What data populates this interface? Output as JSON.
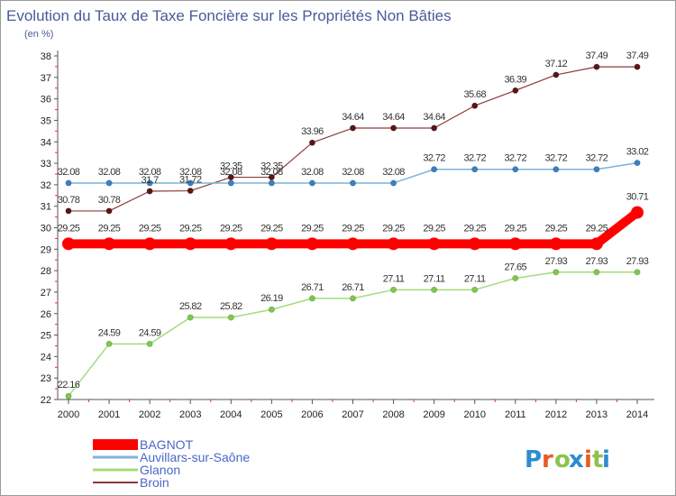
{
  "header": {
    "title": "Evolution du Taux de Taxe Foncière sur les Propriétés Non Bâties",
    "subtitle": "(en %)"
  },
  "logo": {
    "text": "Proxiti",
    "colors": [
      "#2d8ccf",
      "#e85b20",
      "#8bc34a",
      "#2d8ccf",
      "#e85b20",
      "#8bc34a",
      "#2d8ccf"
    ]
  },
  "chart_data": {
    "type": "line",
    "title": "Evolution du Taux de Taxe Foncière sur les Propriétés Non Bâties",
    "ylabel": "(en %)",
    "xlabel": "",
    "x": [
      "2000",
      "2001",
      "2002",
      "2003",
      "2004",
      "2005",
      "2006",
      "2007",
      "2008",
      "2009",
      "2010",
      "2011",
      "2012",
      "2013",
      "2014"
    ],
    "ylim": [
      22,
      38
    ],
    "yticks": [
      "22",
      "23",
      "24",
      "25",
      "26",
      "27",
      "28",
      "29",
      "30",
      "31",
      "32",
      "33",
      "34",
      "35",
      "36",
      "37",
      "38"
    ],
    "grid": false,
    "legend_position": "bottom-left",
    "series": [
      {
        "name": "BAGNOT",
        "color": "#ff0000",
        "values": [
          29.25,
          29.25,
          29.25,
          29.25,
          29.25,
          29.25,
          29.25,
          29.25,
          29.25,
          29.25,
          29.25,
          29.25,
          29.25,
          29.25,
          30.71
        ],
        "labels": [
          "29.25",
          "29.25",
          "29.25",
          "29.25",
          "29.25",
          "29.25",
          "29.25",
          "29.25",
          "29.25",
          "29.25",
          "29.25",
          "29.25",
          "29.25",
          "29.25",
          "30.71"
        ]
      },
      {
        "name": "Auvillars-sur-Saône",
        "color": "#7fb2dd",
        "values": [
          32.08,
          32.08,
          32.08,
          32.08,
          32.08,
          32.08,
          32.08,
          32.08,
          32.08,
          32.72,
          32.72,
          32.72,
          32.72,
          32.72,
          33.02
        ],
        "labels": [
          "32.08",
          "32.08",
          "32.08",
          "32.08",
          "32.08",
          "32.08",
          "32.08",
          "32.08",
          "32.08",
          "32.72",
          "32.72",
          "32.72",
          "32.72",
          "32.72",
          "33.02"
        ]
      },
      {
        "name": "Glanon",
        "color": "#a3dc7a",
        "values": [
          22.16,
          24.59,
          24.59,
          25.82,
          25.82,
          26.19,
          26.71,
          26.71,
          27.11,
          27.11,
          27.11,
          27.65,
          27.93,
          27.93,
          27.93
        ],
        "labels": [
          "22.16",
          "24.59",
          "24.59",
          "25.82",
          "25.82",
          "26.19",
          "26.71",
          "26.71",
          "27.11",
          "27.11",
          "27.11",
          "27.65",
          "27.93",
          "27.93",
          "27.93"
        ]
      },
      {
        "name": "Broin",
        "color": "#8b3a3a",
        "values": [
          30.78,
          30.78,
          31.7,
          31.72,
          32.35,
          32.35,
          33.96,
          34.64,
          34.64,
          34.64,
          35.68,
          36.39,
          37.12,
          37.49,
          37.49
        ],
        "labels": [
          "30.78",
          "30.78",
          "31.7",
          "31.72",
          "32.35",
          "32.35",
          "33.96",
          "34.64",
          "34.64",
          "34.64",
          "35.68",
          "36.39",
          "37.12",
          "37.49",
          "37.49"
        ]
      }
    ]
  }
}
